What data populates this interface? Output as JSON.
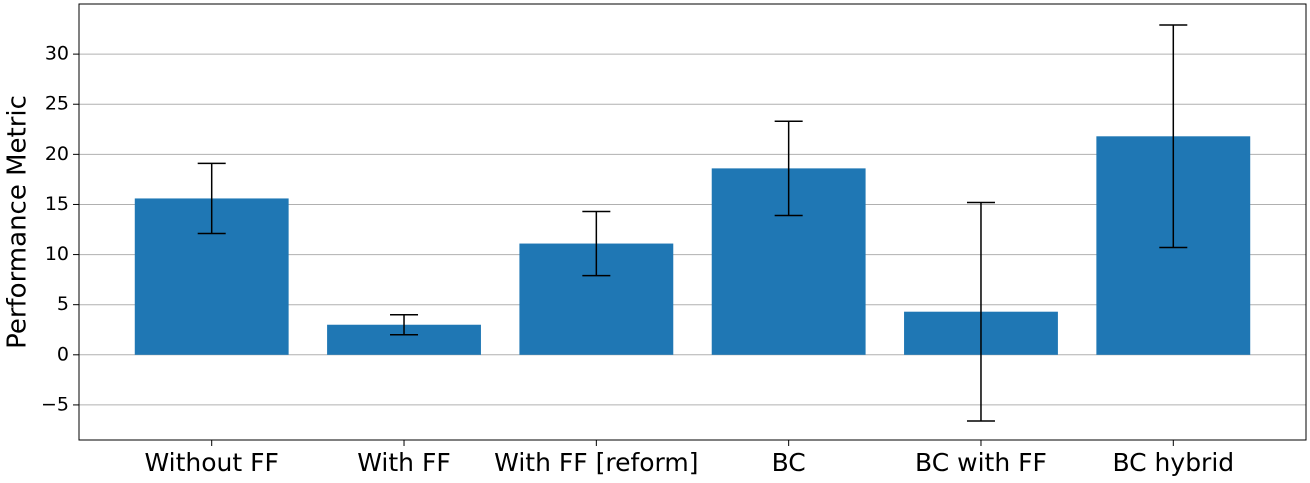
{
  "chart_data": {
    "type": "bar",
    "ylabel": "Performance Metric",
    "categories": [
      "Without FF",
      "With FF",
      "With FF [reform]",
      "BC",
      "BC with FF",
      "BC hybrid"
    ],
    "values": [
      15.6,
      3.0,
      11.1,
      18.6,
      4.3,
      21.8
    ],
    "errors": [
      3.5,
      1.0,
      3.2,
      4.7,
      10.9,
      11.1
    ],
    "color": "#1f77b4",
    "ylim": [
      -8.5,
      35
    ],
    "yticks": [
      {
        "value": -5,
        "label": "−5"
      },
      0,
      5,
      10,
      15,
      20,
      25,
      30
    ],
    "grid": true
  }
}
